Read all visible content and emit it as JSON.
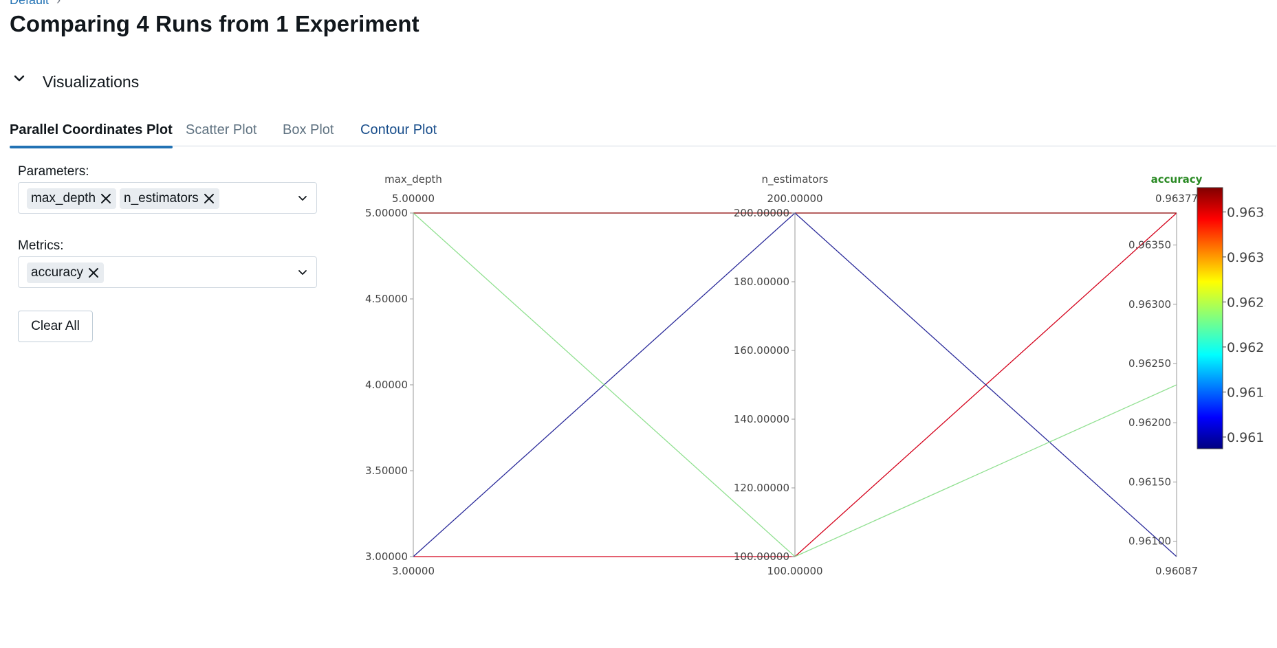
{
  "breadcrumb": {
    "item": "Default",
    "separator": "›"
  },
  "page_title": "Comparing 4 Runs from 1 Experiment",
  "visualizations": {
    "label": "Visualizations",
    "toggle_icon": "chevron-down-icon"
  },
  "tabs": [
    {
      "label": "Parallel Coordinates Plot"
    },
    {
      "label": "Scatter Plot"
    },
    {
      "label": "Box Plot"
    },
    {
      "label": "Contour Plot"
    }
  ],
  "parameters": {
    "label": "Parameters:",
    "chips": [
      "max_depth",
      "n_estimators"
    ]
  },
  "metrics": {
    "label": "Metrics:",
    "chips": [
      "accuracy"
    ]
  },
  "clear_all_label": "Clear All",
  "colors": {
    "accent": "#2272b4",
    "highlight_axis": "#2a8a24",
    "line_dark_red": "#8b0000",
    "line_red": "#d4001a",
    "line_navy": "#2a2a9a",
    "line_light_green": "#90e090"
  },
  "chart_data": {
    "type": "parallel_coordinates",
    "dimensions": [
      {
        "name": "max_depth",
        "max_label": "5.00000",
        "min_label": "3.00000",
        "range": [
          3,
          5
        ],
        "ticks": [
          5,
          4.5,
          4,
          3.5,
          3
        ],
        "tick_labels": [
          "5.00000",
          "4.50000",
          "4.00000",
          "3.50000",
          "3.00000"
        ],
        "highlight": false
      },
      {
        "name": "n_estimators",
        "max_label": "200.00000",
        "min_label": "100.00000",
        "range": [
          100,
          200
        ],
        "ticks": [
          200,
          180,
          160,
          140,
          120,
          100
        ],
        "tick_labels": [
          "200.00000",
          "180.00000",
          "160.00000",
          "140.00000",
          "120.00000",
          "100.00000"
        ],
        "highlight": false
      },
      {
        "name": "accuracy",
        "max_label": "0.96377",
        "min_label": "0.96087",
        "range": [
          0.96087,
          0.96377
        ],
        "ticks": [
          0.9635,
          0.963,
          0.9625,
          0.962,
          0.9615,
          0.961
        ],
        "tick_labels": [
          "0.96350",
          "0.96300",
          "0.96250",
          "0.96200",
          "0.96150",
          "0.96100"
        ],
        "highlight": true
      }
    ],
    "runs": [
      {
        "values": [
          5,
          200,
          0.96377
        ],
        "color": "#8b0000"
      },
      {
        "values": [
          3,
          100,
          0.96377
        ],
        "color": "#d4001a"
      },
      {
        "values": [
          3,
          200,
          0.96087
        ],
        "color": "#2a2a9a"
      },
      {
        "values": [
          5,
          100,
          0.96232
        ],
        "color": "#90e090"
      }
    ],
    "colorbar": {
      "range": [
        0.96087,
        0.96377
      ],
      "ticks": [
        0.9635,
        0.963,
        0.9625,
        0.962,
        0.9615,
        0.961
      ],
      "tick_labels": [
        "0.9635",
        "0.963",
        "0.9625",
        "0.962",
        "0.9615",
        "0.961"
      ],
      "colorscale": "jet"
    }
  }
}
